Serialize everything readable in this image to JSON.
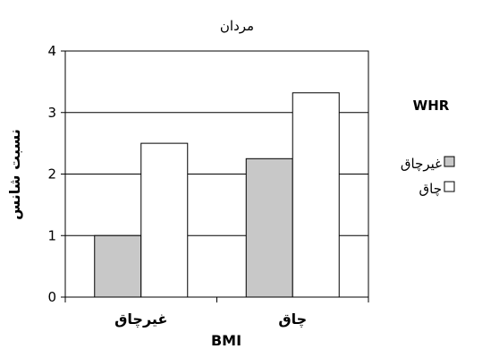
{
  "chart_data": {
    "type": "bar",
    "title": "مردان",
    "xlabel": "BMI",
    "ylabel": "نسبت شانس",
    "categories": [
      "غیرچاق",
      "چاق"
    ],
    "ylim": [
      0,
      4
    ],
    "yticks": [
      0,
      1,
      2,
      3,
      4
    ],
    "grid": true,
    "legend_title": "WHR",
    "legend_position": "right",
    "series": [
      {
        "name": "غیرچاق",
        "color": "#c8c8c8",
        "values": [
          1.0,
          2.25
        ]
      },
      {
        "name": "چاق",
        "color": "#ffffff",
        "values": [
          2.5,
          3.32
        ]
      }
    ]
  }
}
